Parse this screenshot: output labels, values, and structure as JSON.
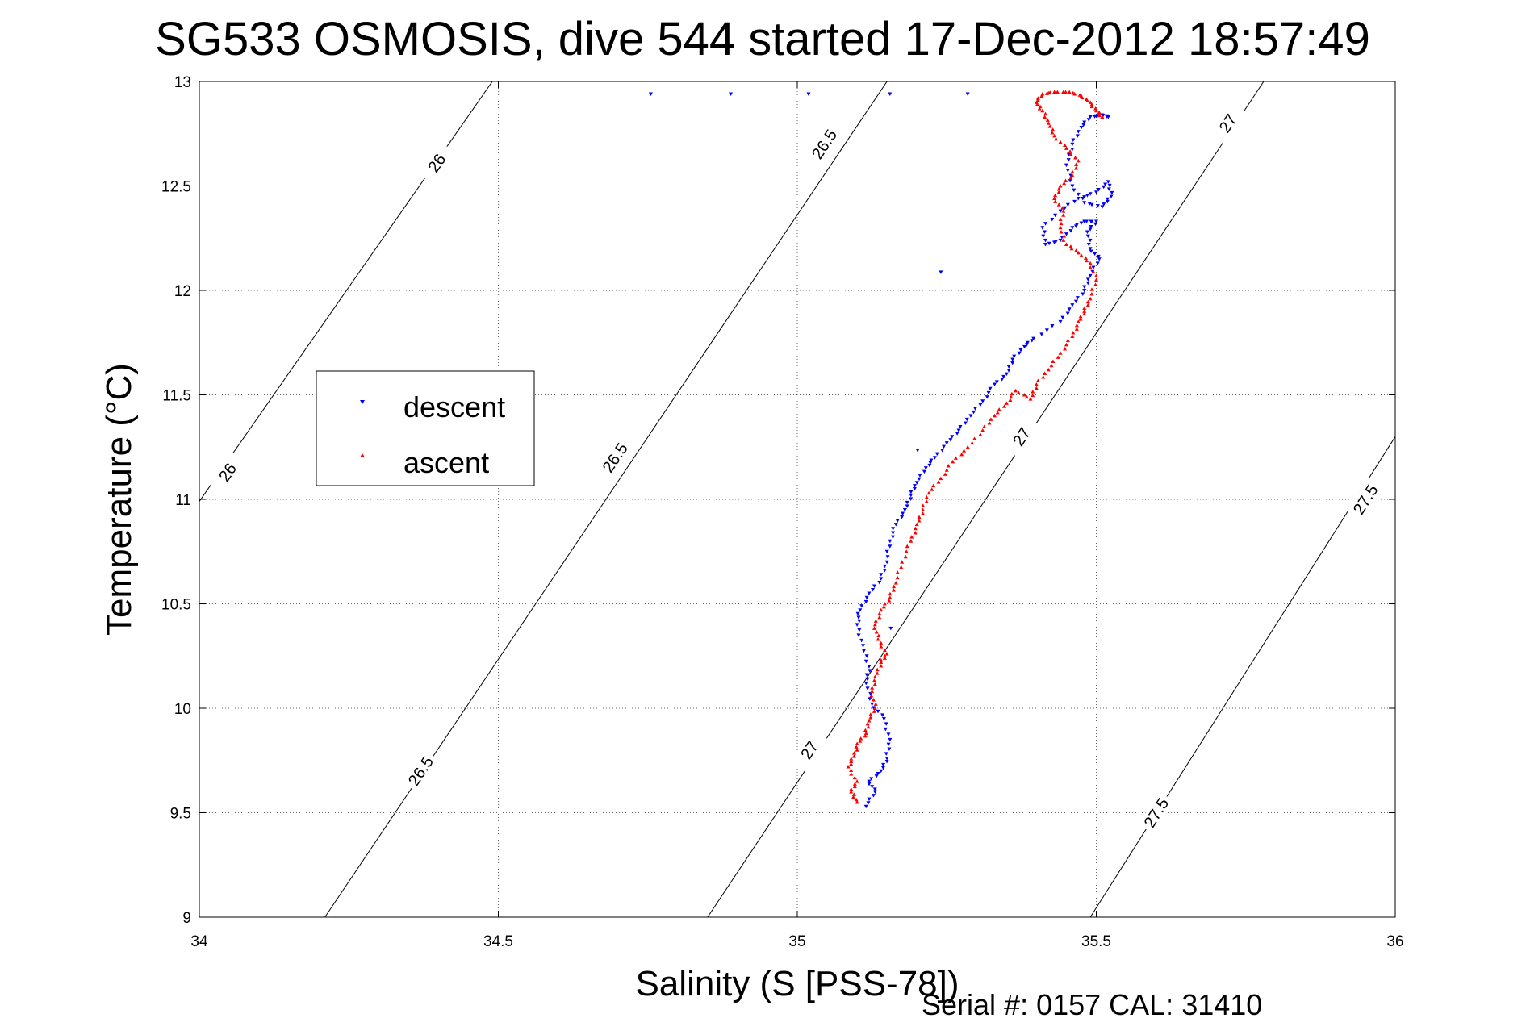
{
  "footer": "Serial #: 0157  CAL: 31410",
  "chart_data": {
    "type": "scatter",
    "title": "SG533 OSMOSIS, dive 544 started 17-Dec-2012 18:57:49",
    "xlabel": "Salinity (S [PSS-78])",
    "ylabel": "Temperature (°C)",
    "xlim": [
      34,
      36
    ],
    "ylim": [
      9,
      13
    ],
    "xticks": [
      "34",
      "34.5",
      "35",
      "35.5",
      "36"
    ],
    "yticks": [
      "9",
      "9.5",
      "10",
      "10.5",
      "11",
      "11.5",
      "12",
      "12.5",
      "13"
    ],
    "grid": true,
    "legend_position": "left",
    "colors": {
      "descent": "#0000ff",
      "ascent": "#ff0000",
      "contour": "#000000"
    },
    "density_contours": [
      {
        "level": "26",
        "points": [
          [
            34.0,
            10.99
          ],
          [
            34.49,
            13.0
          ]
        ],
        "labels": [
          [
            34.047,
            11.13
          ],
          [
            34.397,
            12.61
          ]
        ]
      },
      {
        "level": "26.5",
        "points": [
          [
            34.21,
            9.0
          ],
          [
            35.15,
            13.0
          ]
        ],
        "labels": [
          [
            34.37,
            9.7
          ],
          [
            34.695,
            11.2
          ],
          [
            35.045,
            12.7
          ]
        ]
      },
      {
        "level": "27",
        "points": [
          [
            34.85,
            9.0
          ],
          [
            35.78,
            13.0
          ]
        ],
        "labels": [
          [
            35.02,
            9.8
          ],
          [
            35.375,
            11.3
          ],
          [
            35.72,
            12.8
          ]
        ]
      },
      {
        "level": "27.5",
        "points": [
          [
            35.49,
            9.0
          ],
          [
            36.0,
            11.3
          ]
        ],
        "labels": [
          [
            35.6,
            9.5
          ],
          [
            35.95,
            11.0
          ]
        ]
      }
    ],
    "series": [
      {
        "name": "descent",
        "marker": "triangle-down",
        "points": [
          [
            34.755,
            12.94
          ],
          [
            35.285,
            12.94
          ],
          [
            35.115,
            9.53
          ],
          [
            35.13,
            9.6
          ],
          [
            35.12,
            9.65
          ],
          [
            35.14,
            9.7
          ],
          [
            35.15,
            9.76
          ],
          [
            35.155,
            9.85
          ],
          [
            35.145,
            9.95
          ],
          [
            35.125,
            10.02
          ],
          [
            35.115,
            10.12
          ],
          [
            35.12,
            10.2
          ],
          [
            35.11,
            10.3
          ],
          [
            35.1,
            10.4
          ],
          [
            35.105,
            10.47
          ],
          [
            35.12,
            10.55
          ],
          [
            35.14,
            10.62
          ],
          [
            35.15,
            10.7
          ],
          [
            35.155,
            10.8
          ],
          [
            35.165,
            10.88
          ],
          [
            35.18,
            10.95
          ],
          [
            35.19,
            11.02
          ],
          [
            35.2,
            11.08
          ],
          [
            35.215,
            11.15
          ],
          [
            35.23,
            11.2
          ],
          [
            35.25,
            11.27
          ],
          [
            35.27,
            11.33
          ],
          [
            35.29,
            11.4
          ],
          [
            35.31,
            11.47
          ],
          [
            35.33,
            11.55
          ],
          [
            35.35,
            11.6
          ],
          [
            35.36,
            11.67
          ],
          [
            35.38,
            11.73
          ],
          [
            35.395,
            11.77
          ],
          [
            35.44,
            11.85
          ],
          [
            35.46,
            11.93
          ],
          [
            35.48,
            12.0
          ],
          [
            35.49,
            12.07
          ],
          [
            35.505,
            12.15
          ],
          [
            35.49,
            12.2
          ],
          [
            35.485,
            12.28
          ],
          [
            35.5,
            12.33
          ],
          [
            35.48,
            12.33
          ],
          [
            35.46,
            12.3
          ],
          [
            35.44,
            12.24
          ],
          [
            35.415,
            12.22
          ],
          [
            35.41,
            12.3
          ],
          [
            35.44,
            12.38
          ],
          [
            35.47,
            12.44
          ],
          [
            35.5,
            12.47
          ],
          [
            35.52,
            12.52
          ],
          [
            35.525,
            12.45
          ],
          [
            35.51,
            12.4
          ],
          [
            35.48,
            12.42
          ],
          [
            35.46,
            12.5
          ],
          [
            35.45,
            12.6
          ],
          [
            35.46,
            12.7
          ],
          [
            35.475,
            12.78
          ],
          [
            35.49,
            12.83
          ],
          [
            35.51,
            12.84
          ],
          [
            35.52,
            12.83
          ]
        ]
      },
      {
        "name": "ascent",
        "marker": "triangle-up",
        "points": [
          [
            35.1,
            9.55
          ],
          [
            35.09,
            9.6
          ],
          [
            35.1,
            9.65
          ],
          [
            35.085,
            9.72
          ],
          [
            35.095,
            9.77
          ],
          [
            35.1,
            9.83
          ],
          [
            35.115,
            9.88
          ],
          [
            35.12,
            9.94
          ],
          [
            35.13,
            10.0
          ],
          [
            35.125,
            10.08
          ],
          [
            35.13,
            10.15
          ],
          [
            35.14,
            10.22
          ],
          [
            35.15,
            10.26
          ],
          [
            35.135,
            10.33
          ],
          [
            35.13,
            10.4
          ],
          [
            35.14,
            10.47
          ],
          [
            35.155,
            10.53
          ],
          [
            35.165,
            10.6
          ],
          [
            35.175,
            10.7
          ],
          [
            35.19,
            10.8
          ],
          [
            35.2,
            10.88
          ],
          [
            35.21,
            10.95
          ],
          [
            35.22,
            11.03
          ],
          [
            35.24,
            11.1
          ],
          [
            35.26,
            11.18
          ],
          [
            35.285,
            11.25
          ],
          [
            35.31,
            11.33
          ],
          [
            35.33,
            11.4
          ],
          [
            35.35,
            11.46
          ],
          [
            35.365,
            11.52
          ],
          [
            35.39,
            11.48
          ],
          [
            35.4,
            11.55
          ],
          [
            35.42,
            11.62
          ],
          [
            35.44,
            11.7
          ],
          [
            35.46,
            11.78
          ],
          [
            35.47,
            11.85
          ],
          [
            35.48,
            11.9
          ],
          [
            35.49,
            11.96
          ],
          [
            35.5,
            12.05
          ],
          [
            35.49,
            12.13
          ],
          [
            35.47,
            12.18
          ],
          [
            35.45,
            12.22
          ],
          [
            35.44,
            12.3
          ],
          [
            35.445,
            12.38
          ],
          [
            35.43,
            12.44
          ],
          [
            35.44,
            12.5
          ],
          [
            35.46,
            12.55
          ],
          [
            35.47,
            12.62
          ],
          [
            35.45,
            12.68
          ],
          [
            35.43,
            12.74
          ],
          [
            35.42,
            12.8
          ],
          [
            35.41,
            12.86
          ],
          [
            35.4,
            12.9
          ],
          [
            35.41,
            12.94
          ],
          [
            35.43,
            12.95
          ],
          [
            35.455,
            12.95
          ],
          [
            35.475,
            12.93
          ],
          [
            35.49,
            12.9
          ],
          [
            35.5,
            12.86
          ],
          [
            35.51,
            12.83
          ]
        ]
      }
    ]
  }
}
